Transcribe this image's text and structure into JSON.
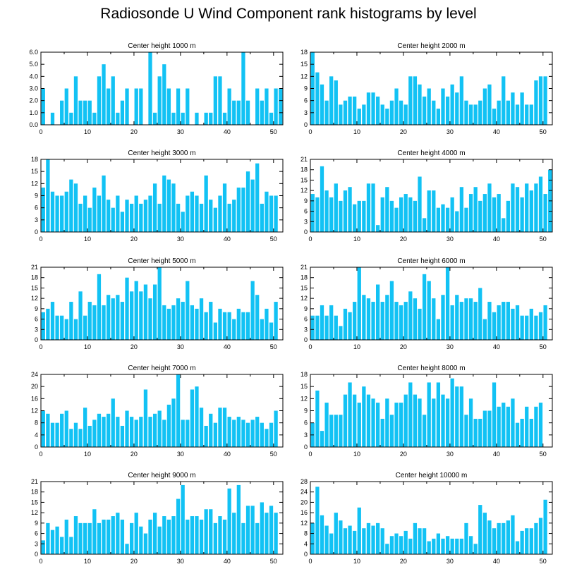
{
  "title": "Radiosonde U Wind Component rank histograms by level",
  "bar_color": "#12c2f4",
  "chart_data": [
    {
      "type": "bar",
      "title": "Center height 1000 m",
      "xlim": [
        0,
        52
      ],
      "xticks": [
        0,
        10,
        20,
        30,
        40,
        50
      ],
      "ylim": [
        0,
        6
      ],
      "yticks": [
        0,
        1,
        2,
        3,
        4,
        5,
        6
      ],
      "ytick_labels": [
        "0.0",
        "1.0",
        "2.0",
        "3.0",
        "4.0",
        "5.0",
        "6.0"
      ],
      "values": [
        3,
        0,
        1,
        0,
        2,
        3,
        1,
        4,
        2,
        2,
        2,
        1,
        4,
        5,
        3,
        4,
        1,
        2,
        3,
        0,
        3,
        3,
        0,
        6,
        1,
        4,
        5,
        3,
        1,
        3,
        1,
        3,
        0,
        1,
        0,
        1,
        1,
        4,
        4,
        1,
        3,
        2,
        2,
        6,
        2,
        0,
        3,
        2,
        3,
        1,
        3,
        3
      ]
    },
    {
      "type": "bar",
      "title": "Center height 2000 m",
      "xlim": [
        0,
        52
      ],
      "xticks": [
        0,
        10,
        20,
        30,
        40,
        50
      ],
      "ylim": [
        0,
        18
      ],
      "yticks": [
        0,
        3,
        6,
        9,
        12,
        15,
        18
      ],
      "ytick_labels": [
        "0",
        "3",
        "6",
        "9",
        "12",
        "15",
        "18"
      ],
      "values": [
        18,
        13,
        10,
        6,
        12,
        11,
        5,
        6,
        7,
        7,
        4,
        5,
        8,
        8,
        7,
        5,
        4,
        6,
        9,
        6,
        5,
        12,
        12,
        10,
        7,
        9,
        6,
        4,
        9,
        7,
        10,
        8,
        12,
        6,
        5,
        5,
        6,
        9,
        10,
        4,
        6,
        12,
        6,
        8,
        5,
        8,
        5,
        5,
        11,
        12,
        12
      ]
    },
    {
      "type": "bar",
      "title": "Center height 3000 m",
      "xlim": [
        0,
        52
      ],
      "xticks": [
        0,
        10,
        20,
        30,
        40,
        50
      ],
      "ylim": [
        0,
        18
      ],
      "yticks": [
        0,
        3,
        6,
        9,
        12,
        15,
        18
      ],
      "ytick_labels": [
        "0",
        "3",
        "6",
        "9",
        "12",
        "15",
        "18"
      ],
      "values": [
        11,
        18,
        10,
        9,
        9,
        10,
        13,
        12,
        7,
        9,
        6,
        11,
        9,
        14,
        8,
        6,
        9,
        5,
        8,
        7,
        9,
        7,
        8,
        9,
        12,
        7,
        14,
        13,
        12,
        7,
        5,
        9,
        10,
        9,
        7,
        14,
        8,
        6,
        9,
        12,
        7,
        8,
        11,
        11,
        15,
        13,
        17,
        7,
        10,
        9,
        9
      ]
    },
    {
      "type": "bar",
      "title": "Center height 4000 m",
      "xlim": [
        0,
        52
      ],
      "xticks": [
        0,
        10,
        20,
        30,
        40,
        50
      ],
      "ylim": [
        0,
        21
      ],
      "yticks": [
        0,
        3,
        6,
        9,
        12,
        15,
        18,
        21
      ],
      "ytick_labels": [
        "0",
        "3",
        "6",
        "9",
        "12",
        "15",
        "18",
        "21"
      ],
      "values": [
        11,
        10,
        19,
        12,
        10,
        14,
        9,
        12,
        13,
        8,
        9,
        9,
        14,
        14,
        2,
        10,
        13,
        9,
        7,
        10,
        11,
        10,
        9,
        16,
        4,
        12,
        12,
        7,
        8,
        7,
        10,
        6,
        13,
        7,
        11,
        13,
        9,
        11,
        14,
        10,
        11,
        4,
        9,
        14,
        13,
        10,
        14,
        12,
        14,
        16,
        11,
        18
      ]
    },
    {
      "type": "bar",
      "title": "Center height 5000 m",
      "xlim": [
        0,
        52
      ],
      "xticks": [
        0,
        10,
        20,
        30,
        40,
        50
      ],
      "ylim": [
        0,
        21
      ],
      "yticks": [
        0,
        3,
        6,
        9,
        12,
        15,
        18,
        21
      ],
      "ytick_labels": [
        "0",
        "3",
        "6",
        "9",
        "12",
        "15",
        "18",
        "21"
      ],
      "values": [
        8,
        9,
        11,
        7,
        7,
        6,
        11,
        6,
        14,
        7,
        11,
        10,
        19,
        10,
        13,
        12,
        13,
        11,
        18,
        14,
        17,
        14,
        16,
        12,
        16,
        21,
        10,
        9,
        10,
        12,
        11,
        17,
        10,
        9,
        12,
        8,
        11,
        5,
        9,
        8,
        8,
        6,
        9,
        8,
        8,
        17,
        13,
        6,
        9,
        5,
        11
      ]
    },
    {
      "type": "bar",
      "title": "Center height 6000 m",
      "xlim": [
        0,
        52
      ],
      "xticks": [
        0,
        10,
        20,
        30,
        40,
        50
      ],
      "ylim": [
        0,
        21
      ],
      "yticks": [
        0,
        3,
        6,
        9,
        12,
        15,
        18,
        21
      ],
      "ytick_labels": [
        "0",
        "3",
        "6",
        "9",
        "12",
        "15",
        "18",
        "21"
      ],
      "values": [
        7,
        7,
        10,
        7,
        10,
        7,
        4,
        9,
        8,
        11,
        21,
        13,
        12,
        11,
        16,
        11,
        13,
        17,
        11,
        10,
        11,
        14,
        12,
        9,
        19,
        17,
        12,
        6,
        13,
        21,
        10,
        13,
        11,
        12,
        12,
        11,
        15,
        6,
        11,
        8,
        10,
        11,
        11,
        9,
        10,
        7,
        7,
        9,
        7,
        8,
        10
      ]
    },
    {
      "type": "bar",
      "title": "Center height 7000 m",
      "xlim": [
        0,
        52
      ],
      "xticks": [
        0,
        10,
        20,
        30,
        40,
        50
      ],
      "ylim": [
        0,
        24
      ],
      "yticks": [
        0,
        4,
        8,
        12,
        16,
        20,
        24
      ],
      "ytick_labels": [
        "0",
        "4",
        "8",
        "12",
        "16",
        "20",
        "24"
      ],
      "values": [
        12,
        11,
        8,
        8,
        11,
        12,
        6,
        8,
        6,
        13,
        7,
        9,
        11,
        10,
        11,
        16,
        10,
        7,
        12,
        10,
        9,
        10,
        19,
        10,
        11,
        12,
        9,
        14,
        16,
        24,
        9,
        9,
        19,
        20,
        13,
        7,
        11,
        8,
        13,
        13,
        10,
        9,
        10,
        9,
        8,
        9,
        10,
        8,
        6,
        8,
        12
      ]
    },
    {
      "type": "bar",
      "title": "Center height 8000 m",
      "xlim": [
        0,
        52
      ],
      "xticks": [
        0,
        10,
        20,
        30,
        40,
        50
      ],
      "ylim": [
        0,
        18
      ],
      "yticks": [
        0,
        3,
        6,
        9,
        12,
        15,
        18
      ],
      "ytick_labels": [
        "0",
        "3",
        "6",
        "9",
        "12",
        "15",
        "18"
      ],
      "values": [
        6,
        14,
        4,
        11,
        8,
        8,
        8,
        13,
        16,
        13,
        11,
        15,
        13,
        12,
        11,
        7,
        12,
        8,
        11,
        11,
        13,
        16,
        13,
        12,
        8,
        16,
        12,
        16,
        13,
        12,
        17,
        15,
        15,
        8,
        12,
        7,
        7,
        9,
        9,
        16,
        10,
        11,
        10,
        12,
        6,
        7,
        10,
        7,
        10,
        11
      ]
    },
    {
      "type": "bar",
      "title": "Center height 9000 m",
      "xlim": [
        0,
        52
      ],
      "xticks": [
        0,
        10,
        20,
        30,
        40,
        50
      ],
      "ylim": [
        0,
        21
      ],
      "yticks": [
        0,
        3,
        6,
        9,
        12,
        15,
        18,
        21
      ],
      "ytick_labels": [
        "0",
        "3",
        "6",
        "9",
        "12",
        "15",
        "18",
        "21"
      ],
      "values": [
        4,
        9,
        7,
        8,
        5,
        10,
        5,
        11,
        9,
        9,
        9,
        13,
        9,
        10,
        10,
        11,
        12,
        10,
        3,
        9,
        12,
        8,
        6,
        10,
        12,
        8,
        11,
        10,
        11,
        16,
        20,
        10,
        11,
        11,
        10,
        13,
        13,
        9,
        11,
        10,
        19,
        12,
        20,
        9,
        14,
        14,
        9,
        15,
        12,
        14,
        12
      ]
    },
    {
      "type": "bar",
      "title": "Center height 10000 m",
      "xlim": [
        0,
        52
      ],
      "xticks": [
        0,
        10,
        20,
        30,
        40,
        50
      ],
      "ylim": [
        0,
        28
      ],
      "yticks": [
        0,
        4,
        8,
        12,
        16,
        20,
        24,
        28
      ],
      "ytick_labels": [
        "0",
        "4",
        "8",
        "12",
        "16",
        "20",
        "24",
        "28"
      ],
      "values": [
        12,
        26,
        15,
        11,
        8,
        16,
        13,
        10,
        11,
        9,
        18,
        10,
        12,
        11,
        12,
        10,
        4,
        7,
        8,
        7,
        9,
        6,
        12,
        10,
        10,
        5,
        6,
        8,
        6,
        7,
        6,
        6,
        6,
        12,
        7,
        4,
        19,
        16,
        13,
        10,
        12,
        12,
        13,
        15,
        5,
        9,
        10,
        10,
        12,
        14,
        21
      ]
    }
  ]
}
